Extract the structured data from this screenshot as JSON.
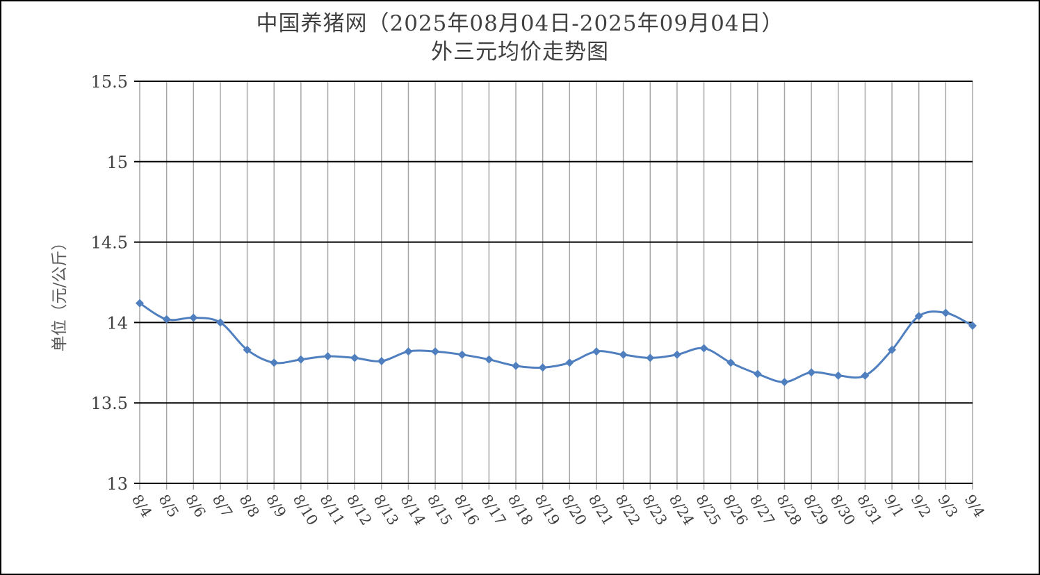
{
  "chart_data": {
    "type": "line",
    "title": "中国养猪网（2025年08月04日-2025年09月04日）",
    "subtitle": "外三元均价走势图",
    "xlabel": "",
    "ylabel": "单位（元/公斤）",
    "ylim": [
      13,
      15.5
    ],
    "yticks": [
      "13",
      "13.5",
      "14",
      "14.5",
      "15",
      "15.5"
    ],
    "grid": true,
    "legend": "none",
    "line_color": "#4f7fbf",
    "marker": "diamond",
    "categories": [
      "8/4",
      "8/5",
      "8/6",
      "8/7",
      "8/8",
      "8/9",
      "8/10",
      "8/11",
      "8/12",
      "8/13",
      "8/14",
      "8/15",
      "8/16",
      "8/17",
      "8/18",
      "8/19",
      "8/20",
      "8/21",
      "8/22",
      "8/23",
      "8/24",
      "8/25",
      "8/26",
      "8/27",
      "8/28",
      "8/29",
      "8/30",
      "8/31",
      "9/1",
      "9/2",
      "9/3",
      "9/4"
    ],
    "values": [
      14.12,
      14.02,
      14.03,
      14.0,
      13.83,
      13.75,
      13.77,
      13.79,
      13.78,
      13.76,
      13.82,
      13.82,
      13.8,
      13.77,
      13.73,
      13.72,
      13.75,
      13.82,
      13.8,
      13.78,
      13.8,
      13.84,
      13.75,
      13.68,
      13.63,
      13.69,
      13.67,
      13.67,
      13.83,
      14.04,
      14.06,
      13.98
    ]
  }
}
